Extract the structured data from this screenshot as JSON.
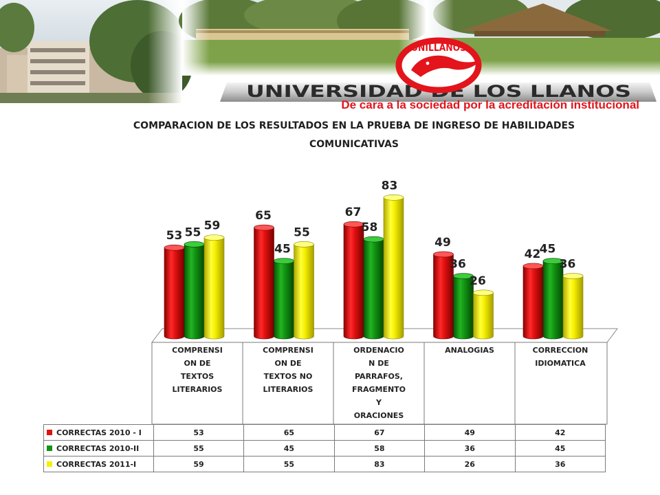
{
  "header": {
    "university_name": "UNIVERSIDAD DE LOS LLANOS",
    "logo_text": "UNILLANOS",
    "subtitle": "De cara a la sociedad por la acreditación institucional"
  },
  "colors": {
    "brand_red": "#e3141b",
    "series_2010_I": "#e01010",
    "series_2010_II": "#129312",
    "series_2011_I": "#f5f000"
  },
  "chart_data": {
    "type": "bar",
    "title": "COMPARACION DE LOS RESULTADOS EN LA PRUEBA  DE INGRESO DE HABILIDADES COMUNICATIVAS",
    "title_lines": [
      "COMPARACION DE LOS RESULTADOS EN LA PRUEBA  DE INGRESO DE HABILIDADES",
      "COMUNICATIVAS"
    ],
    "categories": [
      "COMPRENSI ON DE TEXTOS LITERARIOS",
      "COMPRENSI ON DE TEXTOS NO LITERARIOS",
      "ORDENACIO N DE PARRAFOS, FRAGMENTO Y ORACIONES",
      "ANALOGIAS",
      "CORRECCION IDIOMATICA"
    ],
    "category_labels": [
      "COMPRENSI\nON DE\nTEXTOS\nLITERARIOS",
      "COMPRENSI\nON DE\nTEXTOS NO\nLITERARIOS",
      "ORDENACIO\nN DE\nPARRAFOS,\nFRAGMENTO\nY\nORACIONES",
      "ANALOGIAS",
      "CORRECCION\nIDIOMATICA"
    ],
    "series": [
      {
        "name": "CORRECTAS  2010 - I",
        "values": [
          53,
          65,
          67,
          49,
          42
        ]
      },
      {
        "name": "CORRECTAS  2010-II",
        "values": [
          55,
          45,
          58,
          36,
          45
        ]
      },
      {
        "name": "CORRECTAS  2011-I",
        "values": [
          59,
          55,
          83,
          26,
          36
        ]
      }
    ],
    "ylim": [
      0,
      100
    ],
    "grid": false,
    "legend": "data-table-bottom",
    "style": "3d-cylinder"
  }
}
